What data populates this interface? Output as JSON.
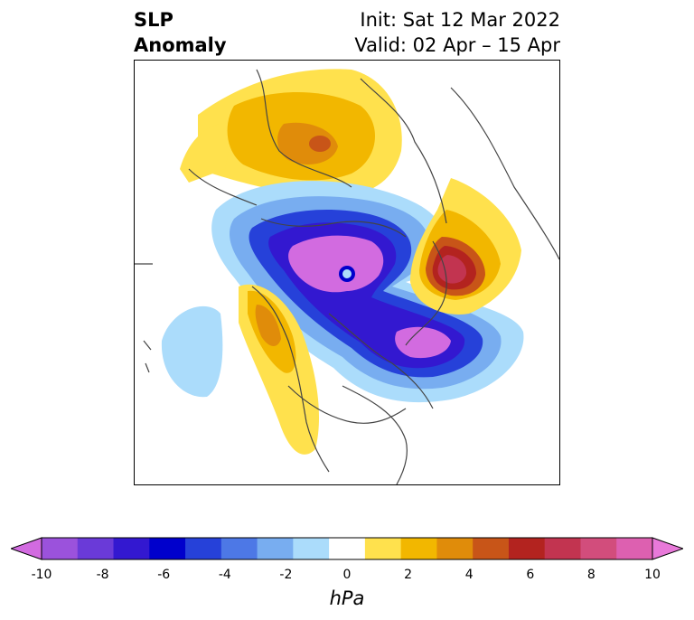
{
  "title": {
    "left_line1": "SLP",
    "left_line2": "Anomaly",
    "init": "Init: Sat 12 Mar 2022",
    "valid": "Valid: 02 Apr – 15 Apr"
  },
  "colorbar": {
    "units": "hPa",
    "ticks": [
      "-10",
      "-8",
      "-6",
      "-4",
      "-2",
      "0",
      "2",
      "4",
      "6",
      "8",
      "10"
    ],
    "colors": [
      "#d26be0",
      "#9b52dc",
      "#6a3ad8",
      "#3318d0",
      "#0000cc",
      "#2641d9",
      "#4d78e6",
      "#78adf0",
      "#abdcfb",
      "#ffffff",
      "#ffe14d",
      "#f2b700",
      "#e08c0a",
      "#c85518",
      "#b3231f",
      "#c23450",
      "#d24d7c",
      "#dd60b0",
      "#e879d9"
    ]
  },
  "map": {
    "features": {
      "arctic_low": "purple",
      "europe_high": "red",
      "west_north_america_high": "orange",
      "siberia_high": "orange",
      "pacific_low": "light-blue"
    }
  }
}
